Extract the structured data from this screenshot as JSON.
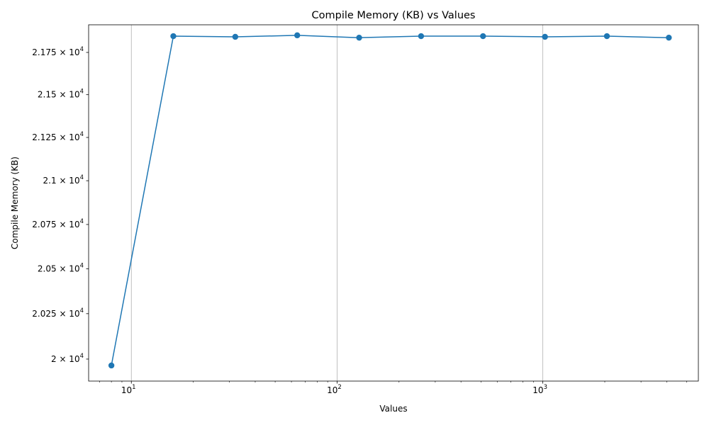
{
  "chart_data": {
    "type": "line",
    "title": "Compile Memory (KB) vs Values",
    "xlabel": "Values",
    "ylabel": "Compile Memory (KB)",
    "x_scale": "log",
    "y_scale": "log",
    "xlim": [
      6.2,
      5700
    ],
    "ylim": [
      19880,
      21915
    ],
    "grid": "x-major",
    "color": "#1f77b4",
    "x_ticks": [
      {
        "value": 10,
        "base": "10",
        "exp": "1"
      },
      {
        "value": 100,
        "base": "10",
        "exp": "2"
      },
      {
        "value": 1000,
        "base": "10",
        "exp": "3"
      }
    ],
    "y_ticks": [
      {
        "value": 20000,
        "mant": "2",
        "exp": "4"
      },
      {
        "value": 20250,
        "mant": "2.025",
        "exp": "4"
      },
      {
        "value": 20500,
        "mant": "2.05",
        "exp": "4"
      },
      {
        "value": 20750,
        "mant": "2.075",
        "exp": "4"
      },
      {
        "value": 21000,
        "mant": "2.1",
        "exp": "4"
      },
      {
        "value": 21250,
        "mant": "2.125",
        "exp": "4"
      },
      {
        "value": 21500,
        "mant": "2.15",
        "exp": "4"
      },
      {
        "value": 21750,
        "mant": "2.175",
        "exp": "4"
      }
    ],
    "series": [
      {
        "x": [
          8,
          16,
          32,
          64,
          128,
          256,
          512,
          1024,
          2048,
          4096
        ],
        "y": [
          19965,
          21847,
          21843,
          21852,
          21838,
          21847,
          21847,
          21843,
          21847,
          21838
        ]
      }
    ]
  }
}
